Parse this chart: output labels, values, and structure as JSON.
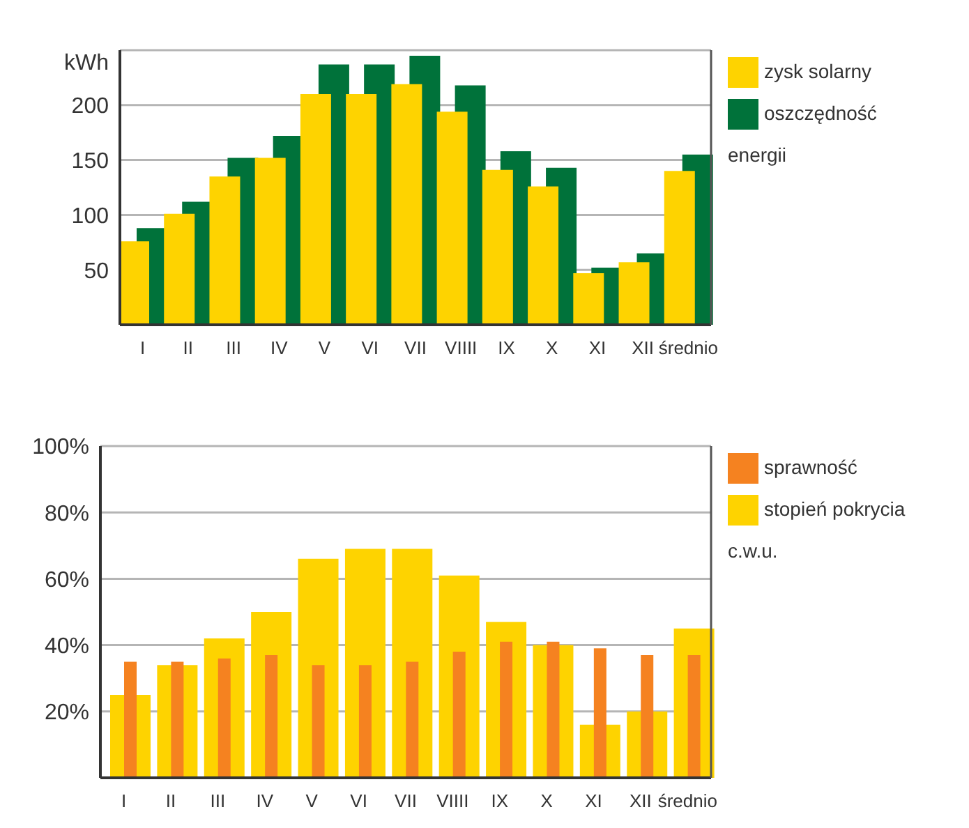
{
  "chart_data": [
    {
      "type": "bar",
      "ylabel": "kWh",
      "categories": [
        "I",
        "II",
        "III",
        "IV",
        "V",
        "VI",
        "VII",
        "VIIII",
        "IX",
        "X",
        "XI",
        "XII",
        "średnio"
      ],
      "series": [
        {
          "name": "zysk solarny",
          "color": "#fed300",
          "values": [
            76,
            101,
            135,
            152,
            210,
            210,
            219,
            194,
            141,
            126,
            47,
            57,
            140
          ]
        },
        {
          "name": "oszczędność energii",
          "color": "#00723a",
          "values": [
            88,
            112,
            152,
            172,
            237,
            237,
            245,
            218,
            158,
            143,
            52,
            65,
            155
          ]
        }
      ],
      "ylim": [
        0,
        250
      ],
      "yticks": [
        50,
        100,
        150,
        200
      ],
      "grid": "y",
      "legend": "right"
    },
    {
      "type": "bar",
      "categories": [
        "I",
        "II",
        "III",
        "IV",
        "V",
        "VI",
        "VII",
        "VIIII",
        "IX",
        "X",
        "XI",
        "XII",
        "średnio"
      ],
      "series": [
        {
          "name": "sprawność",
          "color": "#f58220",
          "values": [
            35,
            35,
            36,
            37,
            34,
            34,
            35,
            38,
            41,
            41,
            39,
            37,
            37
          ]
        },
        {
          "name": "stopień pokrycia c.w.u.",
          "color": "#fed300",
          "values": [
            25,
            34,
            42,
            50,
            66,
            69,
            69,
            61,
            47,
            40,
            16,
            20,
            45
          ]
        }
      ],
      "ylim": [
        0,
        100
      ],
      "yticks": [
        {
          "value": 20,
          "label": "20%"
        },
        {
          "value": 40,
          "label": "40%"
        },
        {
          "value": 60,
          "label": "60%"
        },
        {
          "value": 80,
          "label": "80%"
        },
        {
          "value": 100,
          "label": "100%"
        }
      ],
      "grid": "y",
      "legend": "right"
    }
  ]
}
